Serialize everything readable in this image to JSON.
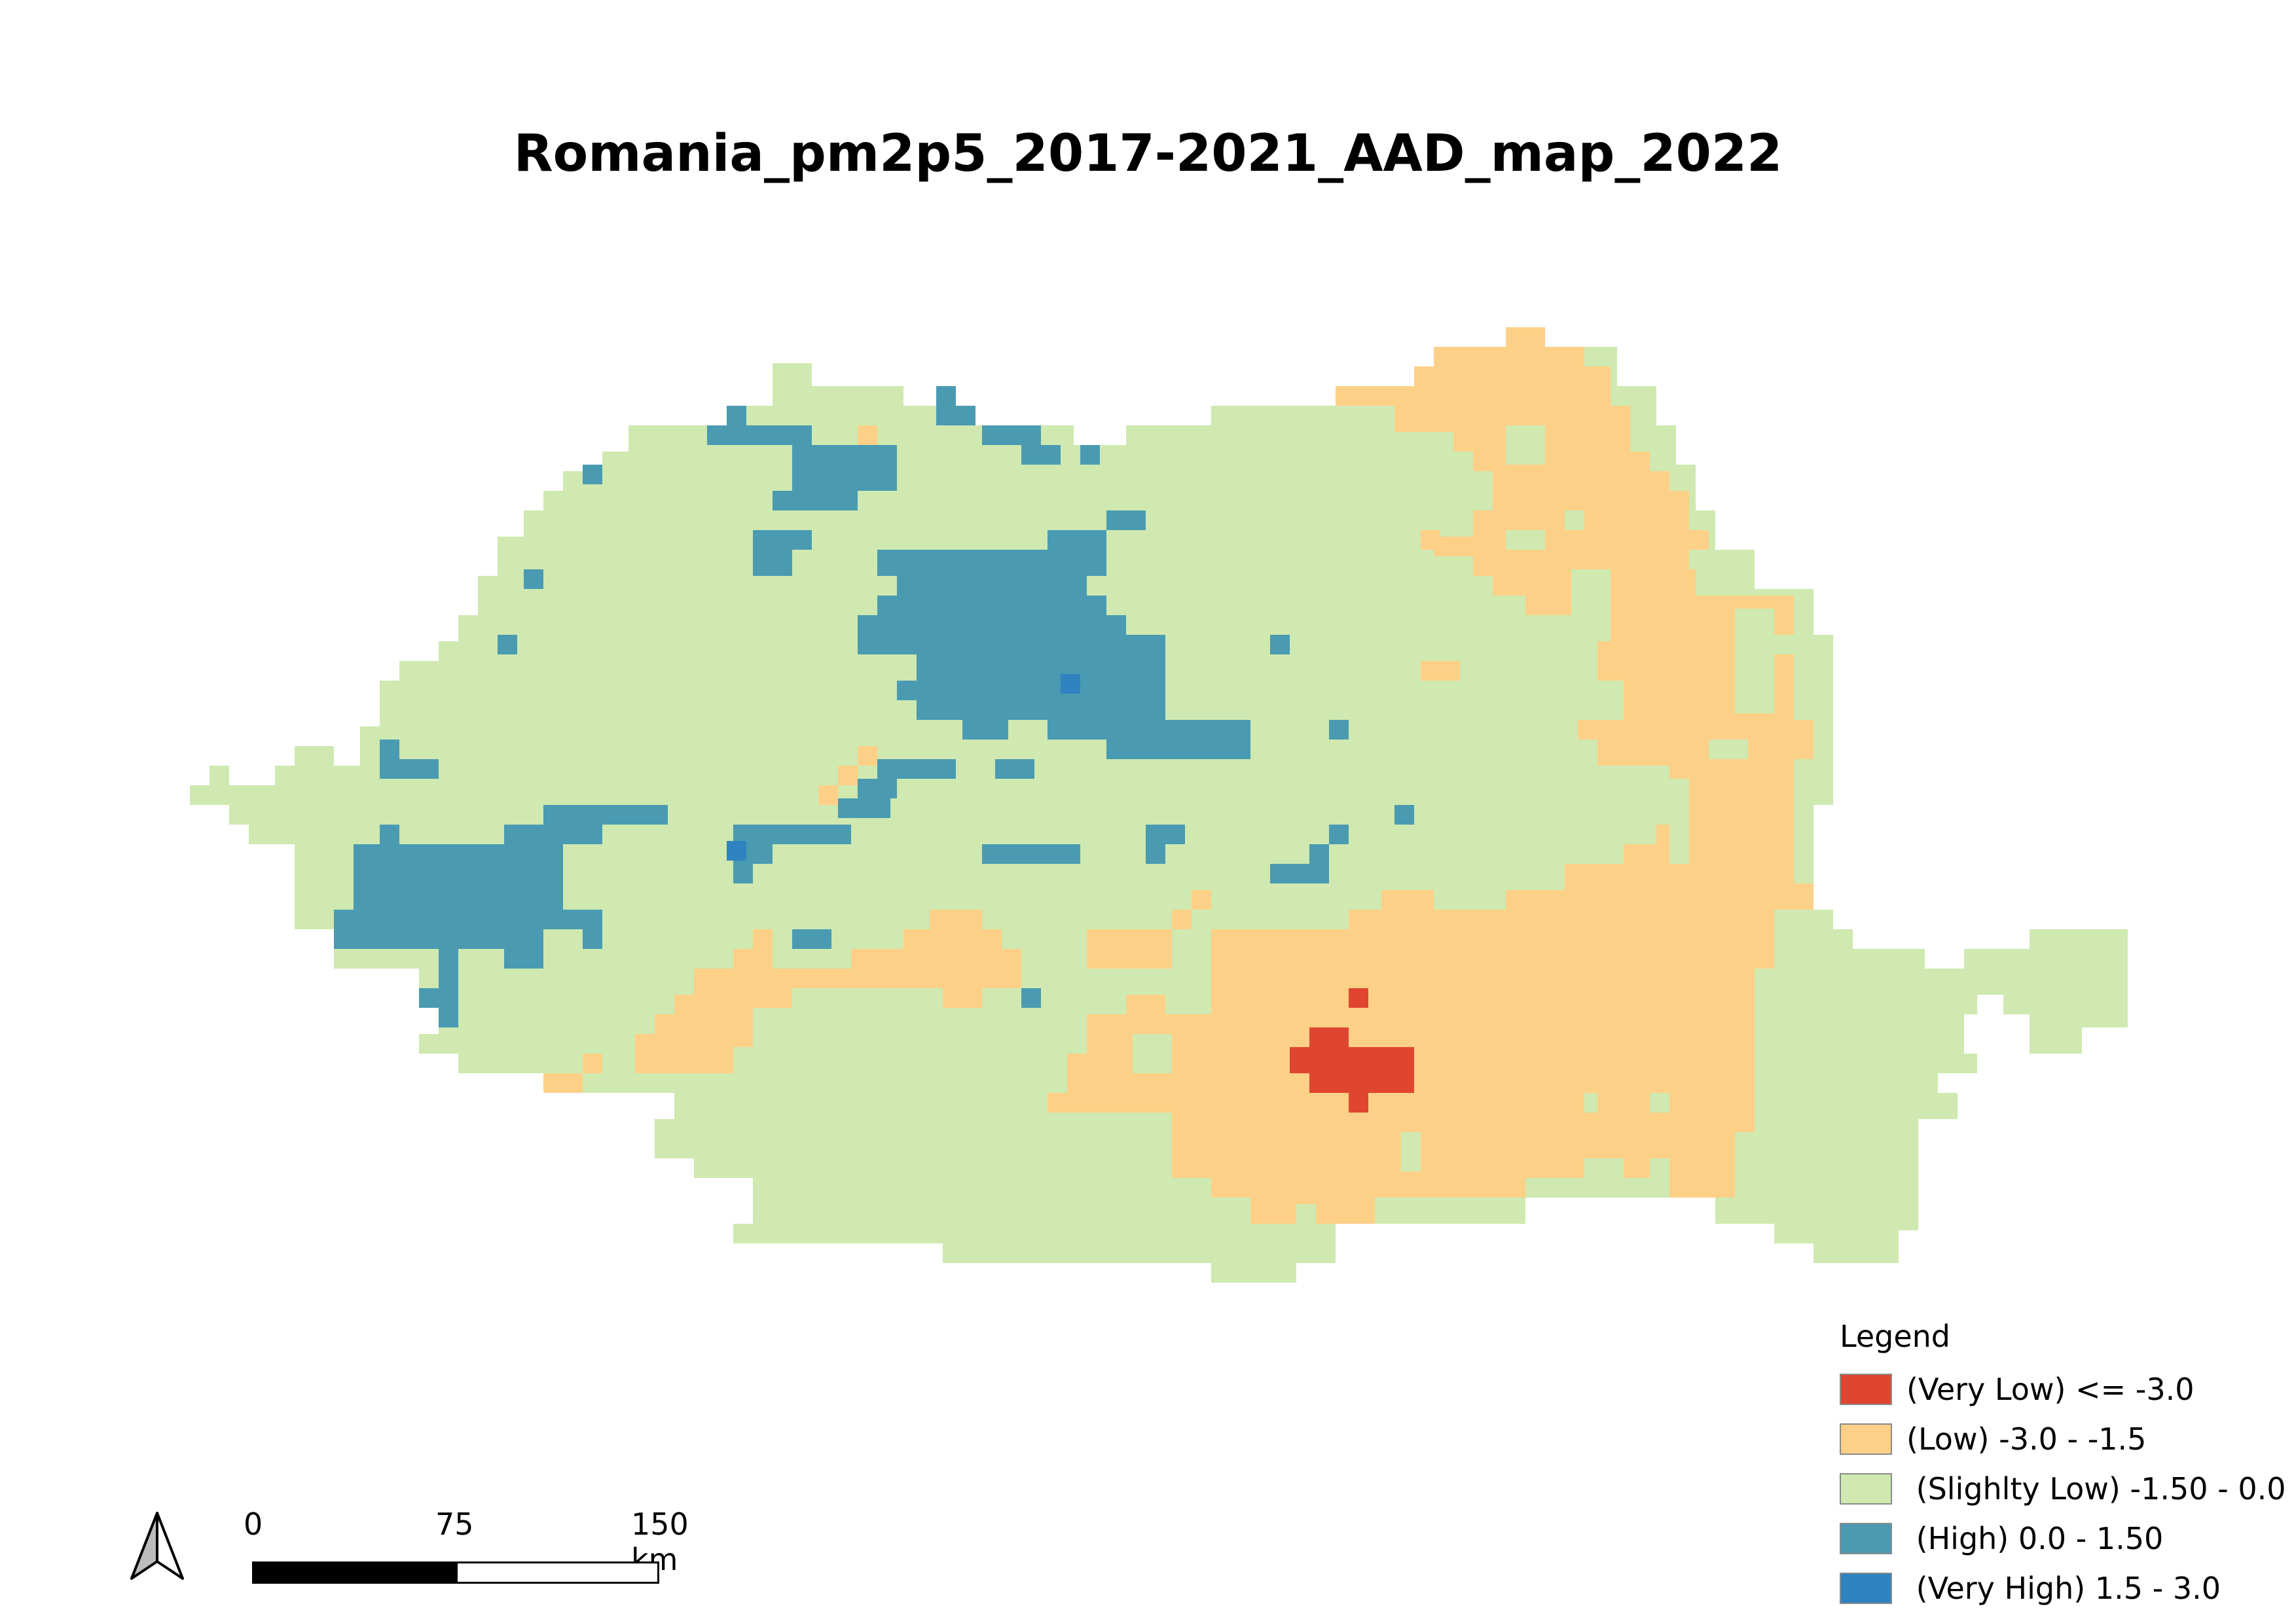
{
  "title": "Romania_pm2p5_2017-2021_AAD_map_2022",
  "legend": {
    "title": "Legend",
    "items": [
      {
        "label": "(Very Low) <= -3.0",
        "color": "#e04530"
      },
      {
        "label": "(Low) -3.0 - -1.5",
        "color": "#fdd088"
      },
      {
        "label": " (Slighlty Low) -1.50 - 0.0",
        "color": "#cfe9b0"
      },
      {
        "label": " (High) 0.0 - 1.50",
        "color": "#4a9bb2"
      },
      {
        "label": " (Very High) 1.5 - 3.0",
        "color": "#2e83c0"
      }
    ]
  },
  "scalebar": {
    "labels": [
      "0",
      "75",
      "150 km"
    ]
  },
  "north_arrow": {
    "icon": "north-arrow-icon"
  },
  "map": {
    "region": "Romania",
    "classes": [
      "very-low",
      "low",
      "slightly-low",
      "high",
      "very-high"
    ]
  }
}
